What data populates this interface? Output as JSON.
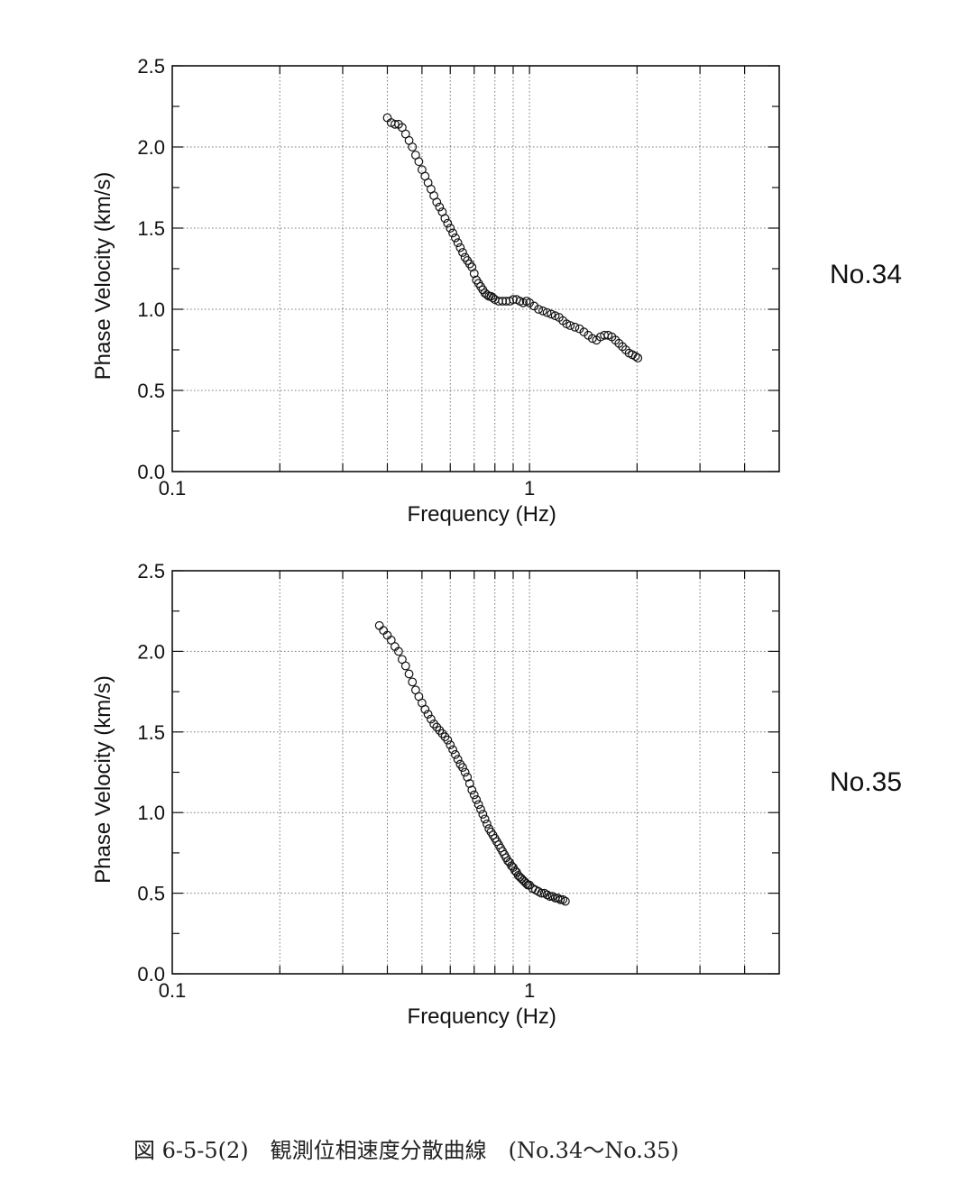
{
  "caption": "図 6-5-5(2)　観測位相速度分散曲線　(No.34〜No.35)",
  "chart_data": [
    {
      "type": "scatter",
      "panel_label": "No.34",
      "xlabel": "Frequency (Hz)",
      "ylabel": "Phase Velocity (km/s)",
      "xscale": "log",
      "xlim": [
        0.1,
        5
      ],
      "ylim": [
        0,
        2.5
      ],
      "x_tick_labels": [
        "0.1",
        "1"
      ],
      "y_tick_labels": [
        "0.0",
        "0.5",
        "1.0",
        "1.5",
        "2.0",
        "2.5"
      ],
      "grid": true,
      "marker": "open-circle",
      "series": [
        {
          "x": [
            0.4,
            0.41,
            0.42,
            0.43,
            0.44,
            0.45,
            0.46,
            0.47,
            0.48,
            0.49,
            0.5,
            0.51,
            0.52,
            0.53,
            0.54,
            0.55,
            0.56,
            0.57,
            0.58,
            0.59,
            0.6,
            0.61,
            0.62,
            0.63,
            0.64,
            0.65,
            0.66,
            0.67,
            0.68,
            0.69,
            0.7,
            0.71,
            0.72,
            0.73,
            0.74,
            0.75,
            0.76,
            0.77,
            0.78,
            0.79,
            0.8,
            0.82,
            0.84,
            0.86,
            0.88,
            0.9,
            0.92,
            0.94,
            0.96,
            0.98,
            1.0,
            1.03,
            1.06,
            1.09,
            1.12,
            1.15,
            1.18,
            1.21,
            1.24,
            1.27,
            1.3,
            1.34,
            1.38,
            1.42,
            1.46,
            1.5,
            1.54,
            1.58,
            1.62,
            1.66,
            1.7,
            1.74,
            1.78,
            1.82,
            1.86,
            1.9,
            1.94,
            1.98,
            2.01
          ],
          "y": [
            2.18,
            2.15,
            2.14,
            2.14,
            2.12,
            2.08,
            2.04,
            2.0,
            1.95,
            1.91,
            1.86,
            1.82,
            1.78,
            1.74,
            1.7,
            1.66,
            1.63,
            1.6,
            1.56,
            1.53,
            1.5,
            1.47,
            1.44,
            1.41,
            1.38,
            1.35,
            1.32,
            1.3,
            1.28,
            1.26,
            1.22,
            1.18,
            1.16,
            1.14,
            1.12,
            1.1,
            1.09,
            1.08,
            1.08,
            1.07,
            1.06,
            1.05,
            1.05,
            1.05,
            1.05,
            1.06,
            1.06,
            1.05,
            1.04,
            1.05,
            1.04,
            1.02,
            1.0,
            0.99,
            0.98,
            0.97,
            0.96,
            0.95,
            0.93,
            0.91,
            0.9,
            0.89,
            0.88,
            0.86,
            0.84,
            0.82,
            0.81,
            0.83,
            0.84,
            0.84,
            0.83,
            0.81,
            0.79,
            0.77,
            0.75,
            0.73,
            0.72,
            0.71,
            0.7
          ]
        }
      ]
    },
    {
      "type": "scatter",
      "panel_label": "No.35",
      "xlabel": "Frequency (Hz)",
      "ylabel": "Phase Velocity (km/s)",
      "xscale": "log",
      "xlim": [
        0.1,
        5
      ],
      "ylim": [
        0,
        2.5
      ],
      "x_tick_labels": [
        "0.1",
        "1"
      ],
      "y_tick_labels": [
        "0.0",
        "0.5",
        "1.0",
        "1.5",
        "2.0",
        "2.5"
      ],
      "grid": true,
      "marker": "open-circle",
      "series": [
        {
          "x": [
            0.38,
            0.39,
            0.4,
            0.41,
            0.42,
            0.43,
            0.44,
            0.45,
            0.46,
            0.47,
            0.48,
            0.49,
            0.5,
            0.51,
            0.52,
            0.53,
            0.54,
            0.55,
            0.56,
            0.57,
            0.58,
            0.59,
            0.6,
            0.61,
            0.62,
            0.63,
            0.64,
            0.65,
            0.66,
            0.67,
            0.68,
            0.69,
            0.7,
            0.71,
            0.72,
            0.73,
            0.74,
            0.75,
            0.76,
            0.77,
            0.78,
            0.79,
            0.8,
            0.81,
            0.82,
            0.83,
            0.84,
            0.85,
            0.86,
            0.87,
            0.88,
            0.89,
            0.9,
            0.91,
            0.92,
            0.93,
            0.94,
            0.95,
            0.96,
            0.97,
            0.98,
            0.99,
            1.0,
            1.02,
            1.04,
            1.06,
            1.08,
            1.1,
            1.12,
            1.14,
            1.16,
            1.18,
            1.2,
            1.22,
            1.24,
            1.26
          ],
          "y": [
            2.16,
            2.13,
            2.1,
            2.07,
            2.03,
            2.0,
            1.95,
            1.91,
            1.86,
            1.81,
            1.76,
            1.72,
            1.68,
            1.64,
            1.61,
            1.58,
            1.55,
            1.53,
            1.51,
            1.49,
            1.47,
            1.45,
            1.42,
            1.39,
            1.36,
            1.33,
            1.3,
            1.28,
            1.25,
            1.22,
            1.18,
            1.14,
            1.11,
            1.08,
            1.05,
            1.02,
            0.99,
            0.96,
            0.93,
            0.9,
            0.88,
            0.86,
            0.84,
            0.82,
            0.8,
            0.78,
            0.76,
            0.74,
            0.72,
            0.7,
            0.69,
            0.67,
            0.66,
            0.64,
            0.63,
            0.61,
            0.6,
            0.59,
            0.58,
            0.57,
            0.56,
            0.55,
            0.55,
            0.53,
            0.52,
            0.51,
            0.5,
            0.5,
            0.49,
            0.48,
            0.48,
            0.47,
            0.47,
            0.46,
            0.46,
            0.45
          ]
        }
      ]
    }
  ]
}
